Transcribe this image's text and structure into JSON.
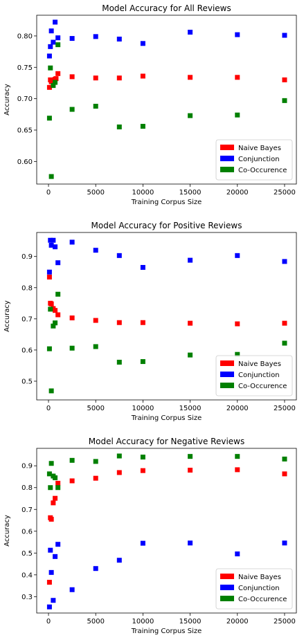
{
  "chart_data": [
    {
      "type": "scatter",
      "title": "Model Accuracy for All Reviews",
      "xlabel": "Training Corpus Size",
      "ylabel": "Accuracy",
      "xlim": [
        -1250,
        26250
      ],
      "ylim": [
        0.564,
        0.833
      ],
      "xticks": [
        0,
        5000,
        10000,
        15000,
        20000,
        25000
      ],
      "yticks": [
        0.6,
        0.65,
        0.7,
        0.75,
        0.8
      ],
      "ytick_labels": [
        "0.60",
        "0.65",
        "0.70",
        "0.75",
        "0.80"
      ],
      "grid": false,
      "legend_position": "lower right",
      "series": [
        {
          "name": "Naive Bayes",
          "color": "#ff0000",
          "points": [
            [
              100,
              0.718
            ],
            [
              200,
              0.73
            ],
            [
              300,
              0.727
            ],
            [
              400,
              0.729
            ],
            [
              500,
              0.728
            ],
            [
              600,
              0.73
            ],
            [
              700,
              0.731
            ],
            [
              800,
              0.732
            ],
            [
              1000,
              0.74
            ],
            [
              2500,
              0.735
            ],
            [
              5000,
              0.733
            ],
            [
              7500,
              0.733
            ],
            [
              10000,
              0.736
            ],
            [
              15000,
              0.734
            ],
            [
              20000,
              0.734
            ],
            [
              25000,
              0.73
            ]
          ]
        },
        {
          "name": "Conjunction",
          "color": "#0000ff",
          "points": [
            [
              100,
              0.768
            ],
            [
              200,
              0.783
            ],
            [
              300,
              0.808
            ],
            [
              500,
              0.79
            ],
            [
              700,
              0.822
            ],
            [
              1000,
              0.797
            ],
            [
              2500,
              0.796
            ],
            [
              5000,
              0.799
            ],
            [
              7500,
              0.795
            ],
            [
              10000,
              0.788
            ],
            [
              15000,
              0.806
            ],
            [
              20000,
              0.802
            ],
            [
              25000,
              0.801
            ]
          ]
        },
        {
          "name": "Co-Occurence",
          "color": "#008000",
          "points": [
            [
              100,
              0.669
            ],
            [
              200,
              0.749
            ],
            [
              300,
              0.576
            ],
            [
              500,
              0.721
            ],
            [
              700,
              0.726
            ],
            [
              1000,
              0.786
            ],
            [
              2500,
              0.683
            ],
            [
              5000,
              0.688
            ],
            [
              7500,
              0.655
            ],
            [
              10000,
              0.656
            ],
            [
              15000,
              0.673
            ],
            [
              20000,
              0.674
            ],
            [
              25000,
              0.697
            ]
          ]
        }
      ]
    },
    {
      "type": "scatter",
      "title": "Model Accuracy for Positive Reviews",
      "xlabel": "Training Corpus Size",
      "ylabel": "Accuracy",
      "xlim": [
        -1250,
        26250
      ],
      "ylim": [
        0.44,
        0.977
      ],
      "xticks": [
        0,
        5000,
        10000,
        15000,
        20000,
        25000
      ],
      "yticks": [
        0.5,
        0.6,
        0.7,
        0.8,
        0.9
      ],
      "ytick_labels": [
        "0.5",
        "0.6",
        "0.7",
        "0.8",
        "0.9"
      ],
      "grid": false,
      "legend_position": "lower right",
      "series": [
        {
          "name": "Naive Bayes",
          "color": "#ff0000",
          "points": [
            [
              100,
              0.834
            ],
            [
              200,
              0.75
            ],
            [
              300,
              0.748
            ],
            [
              500,
              0.733
            ],
            [
              700,
              0.727
            ],
            [
              1000,
              0.713
            ],
            [
              2500,
              0.703
            ],
            [
              5000,
              0.695
            ],
            [
              7500,
              0.688
            ],
            [
              10000,
              0.688
            ],
            [
              15000,
              0.686
            ],
            [
              20000,
              0.684
            ],
            [
              25000,
              0.686
            ]
          ]
        },
        {
          "name": "Conjunction",
          "color": "#0000ff",
          "points": [
            [
              100,
              0.85
            ],
            [
              200,
              0.952
            ],
            [
              300,
              0.936
            ],
            [
              500,
              0.952
            ],
            [
              700,
              0.931
            ],
            [
              1000,
              0.88
            ],
            [
              2500,
              0.946
            ],
            [
              5000,
              0.92
            ],
            [
              7500,
              0.903
            ],
            [
              10000,
              0.865
            ],
            [
              15000,
              0.888
            ],
            [
              20000,
              0.903
            ],
            [
              25000,
              0.884
            ]
          ]
        },
        {
          "name": "Co-Occurence",
          "color": "#008000",
          "points": [
            [
              100,
              0.604
            ],
            [
              200,
              0.731
            ],
            [
              300,
              0.469
            ],
            [
              500,
              0.677
            ],
            [
              700,
              0.687
            ],
            [
              1000,
              0.779
            ],
            [
              2500,
              0.606
            ],
            [
              5000,
              0.611
            ],
            [
              7500,
              0.561
            ],
            [
              10000,
              0.563
            ],
            [
              15000,
              0.584
            ],
            [
              20000,
              0.586
            ],
            [
              25000,
              0.622
            ]
          ]
        }
      ]
    },
    {
      "type": "scatter",
      "title": "Model Accuracy for Negative Reviews",
      "xlabel": "Training Corpus Size",
      "ylabel": "Accuracy",
      "xlim": [
        -1250,
        26250
      ],
      "ylim": [
        0.225,
        0.98
      ],
      "xticks": [
        0,
        5000,
        10000,
        15000,
        20000,
        25000
      ],
      "yticks": [
        0.3,
        0.4,
        0.5,
        0.6,
        0.7,
        0.8,
        0.9
      ],
      "ytick_labels": [
        "0.3",
        "0.4",
        "0.5",
        "0.6",
        "0.7",
        "0.8",
        "0.9"
      ],
      "grid": false,
      "legend_position": "lower right",
      "series": [
        {
          "name": "Naive Bayes",
          "color": "#ff0000",
          "points": [
            [
              100,
              0.366
            ],
            [
              200,
              0.662
            ],
            [
              300,
              0.655
            ],
            [
              500,
              0.73
            ],
            [
              700,
              0.751
            ],
            [
              1000,
              0.82
            ],
            [
              2500,
              0.831
            ],
            [
              5000,
              0.843
            ],
            [
              7500,
              0.869
            ],
            [
              10000,
              0.878
            ],
            [
              15000,
              0.88
            ],
            [
              20000,
              0.882
            ],
            [
              25000,
              0.863
            ]
          ]
        },
        {
          "name": "Conjunction",
          "color": "#0000ff",
          "points": [
            [
              100,
              0.253
            ],
            [
              200,
              0.513
            ],
            [
              300,
              0.411
            ],
            [
              500,
              0.283
            ],
            [
              700,
              0.484
            ],
            [
              1000,
              0.54
            ],
            [
              2500,
              0.332
            ],
            [
              5000,
              0.429
            ],
            [
              7500,
              0.467
            ],
            [
              10000,
              0.545
            ],
            [
              15000,
              0.546
            ],
            [
              20000,
              0.496
            ],
            [
              25000,
              0.546
            ]
          ]
        },
        {
          "name": "Co-Occurence",
          "color": "#008000",
          "points": [
            [
              100,
              0.863
            ],
            [
              200,
              0.8
            ],
            [
              300,
              0.911
            ],
            [
              500,
              0.853
            ],
            [
              700,
              0.845
            ],
            [
              1000,
              0.8
            ],
            [
              2500,
              0.925
            ],
            [
              5000,
              0.92
            ],
            [
              7500,
              0.945
            ],
            [
              10000,
              0.94
            ],
            [
              15000,
              0.943
            ],
            [
              20000,
              0.943
            ],
            [
              25000,
              0.931
            ]
          ]
        }
      ]
    }
  ]
}
